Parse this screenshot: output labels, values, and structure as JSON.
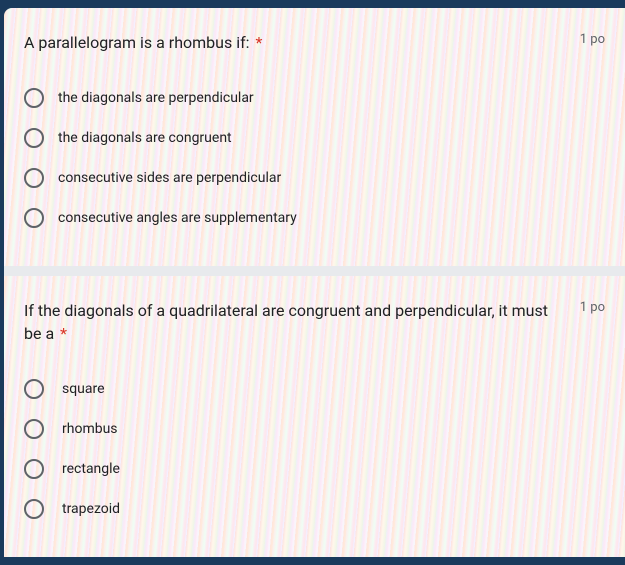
{
  "questions": [
    {
      "text": "A parallelogram is a rhombus if:",
      "required": true,
      "points_label": "1 po",
      "options": [
        "the diagonals are perpendicular",
        "the diagonals are congruent",
        "consecutive sides are perpendicular",
        "consecutive angles are supplementary"
      ]
    },
    {
      "text": "If the diagonals of a quadrilateral are congruent and perpendicular, it must be a",
      "required": true,
      "points_label": "1 po",
      "options": [
        "square",
        "rhombus",
        "rectangle",
        "trapezoid"
      ]
    }
  ],
  "colors": {
    "background": "#1a3a5c",
    "card_bg": "#ffffff",
    "text_primary": "#202124",
    "text_secondary": "#5f6368",
    "required": "#d93025",
    "radio_border": "#5f6368",
    "divider": "#e8eaed"
  }
}
